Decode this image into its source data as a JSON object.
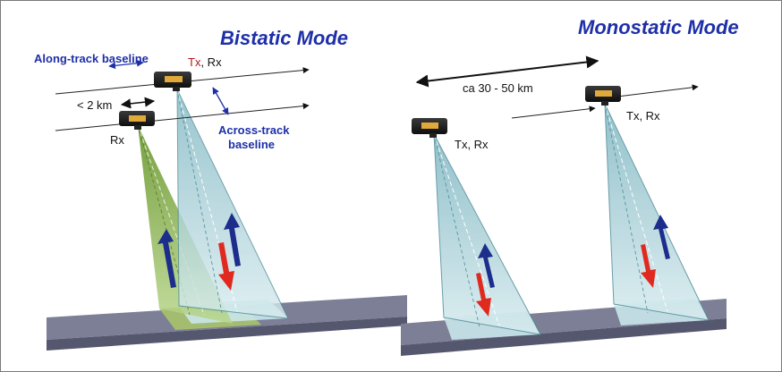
{
  "colors": {
    "title": "#1e2fa8",
    "annotation": "#1e2fa8",
    "tx_highlight": "#b01818",
    "beam_green": "#8ab84a",
    "beam_blue": "#a9d0d8",
    "ground_top": "#7d7f96",
    "ground_side": "#5c5e78",
    "arrow_blue": "#1d2d8c",
    "arrow_red": "#e02a20"
  },
  "bistatic": {
    "title": "Bistatic Mode",
    "along_track_label": "Along-track baseline",
    "tx_label_highlight": "Tx",
    "tx_label_rest": ", Rx",
    "distance_label": "< 2 km",
    "rx_label": "Rx",
    "across_track_line1": "Across-track",
    "across_track_line2": "baseline"
  },
  "monostatic": {
    "title": "Monostatic Mode",
    "distance_label": "ca 30 - 50 km",
    "sat1_label": "Tx, Rx",
    "sat2_label": "Tx, Rx"
  }
}
